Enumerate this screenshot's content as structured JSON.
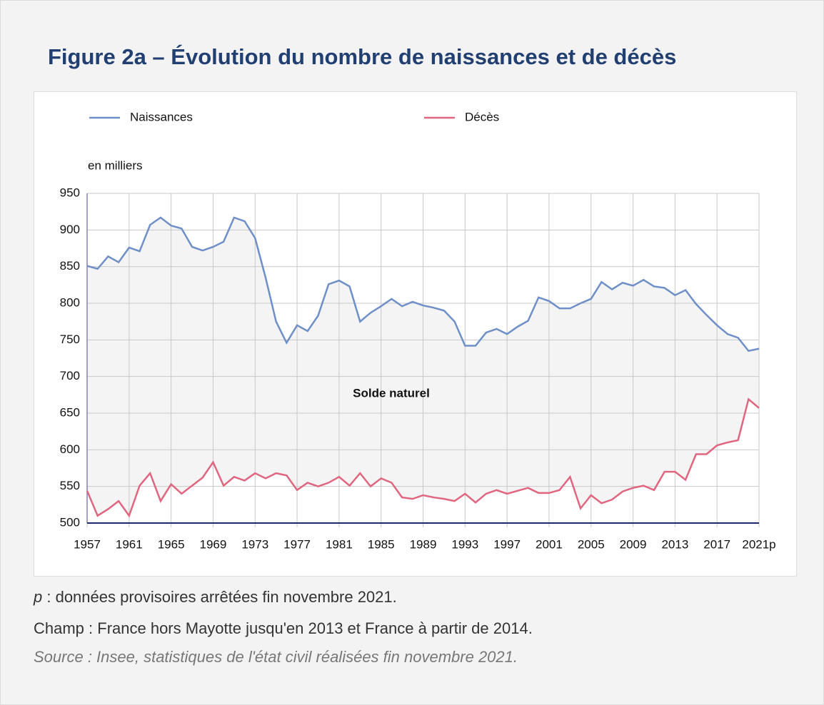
{
  "chart_data": {
    "type": "line",
    "title": "Figure 2a – Évolution du nombre de naissances et de décès",
    "y_unit_label": "en milliers",
    "annotation": "Solde naturel",
    "x": [
      1957,
      1958,
      1959,
      1960,
      1961,
      1962,
      1963,
      1964,
      1965,
      1966,
      1967,
      1968,
      1969,
      1970,
      1971,
      1972,
      1973,
      1974,
      1975,
      1976,
      1977,
      1978,
      1979,
      1980,
      1981,
      1982,
      1983,
      1984,
      1985,
      1986,
      1987,
      1988,
      1989,
      1990,
      1991,
      1992,
      1993,
      1994,
      1995,
      1996,
      1997,
      1998,
      1999,
      2000,
      2001,
      2002,
      2003,
      2004,
      2005,
      2006,
      2007,
      2008,
      2009,
      2010,
      2011,
      2012,
      2013,
      2014,
      2015,
      2016,
      2017,
      2018,
      2019,
      2020,
      2021
    ],
    "series": [
      {
        "name": "Naissances",
        "color": "#6f8fc8",
        "values": [
          851,
          847,
          864,
          856,
          876,
          871,
          907,
          917,
          906,
          902,
          877,
          872,
          877,
          884,
          917,
          912,
          889,
          835,
          775,
          746,
          770,
          762,
          783,
          826,
          831,
          823,
          775,
          787,
          796,
          806,
          796,
          802,
          797,
          794,
          790,
          775,
          742,
          742,
          760,
          765,
          758,
          768,
          776,
          808,
          803,
          793,
          793,
          800,
          806,
          829,
          819,
          828,
          824,
          832,
          823,
          821,
          811,
          818,
          799,
          784,
          770,
          758,
          753,
          735,
          738
        ]
      },
      {
        "name": "Décès",
        "color": "#e0667f",
        "values": [
          544,
          510,
          519,
          530,
          510,
          551,
          568,
          530,
          553,
          540,
          551,
          562,
          583,
          551,
          563,
          558,
          568,
          561,
          568,
          565,
          545,
          555,
          550,
          555,
          563,
          551,
          568,
          550,
          561,
          555,
          535,
          533,
          538,
          535,
          533,
          530,
          540,
          528,
          540,
          545,
          540,
          544,
          548,
          541,
          541,
          545,
          563,
          520,
          538,
          527,
          532,
          543,
          548,
          551,
          545,
          570,
          570,
          559,
          594,
          594,
          606,
          610,
          613,
          669,
          657
        ]
      }
    ],
    "xlim": [
      1957,
      2021
    ],
    "xticks": [
      1957,
      1961,
      1965,
      1969,
      1973,
      1977,
      1981,
      1985,
      1989,
      1993,
      1997,
      2001,
      2005,
      2009,
      2013,
      2017,
      {
        "value": 2021,
        "label": "2021p"
      }
    ],
    "ylim": [
      500,
      950
    ],
    "yticks": [
      500,
      550,
      600,
      650,
      700,
      750,
      800,
      850,
      900,
      950
    ],
    "grid": true,
    "legend": "top"
  },
  "notes": {
    "marker": "p",
    "provisional": " : données provisoires arrêtées fin novembre 2021.",
    "scope": "Champ : France hors Mayotte jusqu'en 2013 et France à partir de 2014.",
    "source": "Source : Insee, statistiques de l'état civil réalisées fin novembre 2021."
  }
}
